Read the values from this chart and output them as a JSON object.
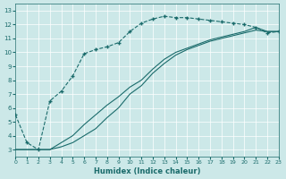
{
  "xlabel": "Humidex (Indice chaleur)",
  "background_color": "#cce8e8",
  "line_color": "#1a6b6b",
  "xlim": [
    0,
    23
  ],
  "ylim": [
    2.5,
    13.5
  ],
  "xticks": [
    0,
    1,
    2,
    3,
    4,
    5,
    6,
    7,
    8,
    9,
    10,
    11,
    12,
    13,
    14,
    15,
    16,
    17,
    18,
    19,
    20,
    21,
    22,
    23
  ],
  "yticks": [
    3,
    4,
    5,
    6,
    7,
    8,
    9,
    10,
    11,
    12,
    13
  ],
  "series": [
    {
      "x": [
        0,
        1,
        2,
        3,
        4,
        5,
        6,
        7,
        8,
        9,
        10,
        11,
        12,
        13,
        14,
        15,
        16,
        17,
        18,
        19,
        20,
        21,
        22,
        23
      ],
      "y": [
        5.5,
        3.5,
        3.0,
        6.5,
        7.2,
        8.3,
        9.9,
        10.2,
        10.4,
        10.7,
        11.5,
        12.1,
        12.4,
        12.6,
        12.5,
        12.5,
        12.4,
        12.3,
        12.2,
        12.1,
        12.0,
        11.8,
        11.4,
        11.5
      ],
      "linestyle": "--",
      "marker": "+"
    },
    {
      "x": [
        0,
        1,
        2,
        3,
        4,
        5,
        6,
        7,
        8,
        9,
        10,
        11,
        12,
        13,
        14,
        15,
        16,
        17,
        18,
        19,
        20,
        21,
        22,
        23
      ],
      "y": [
        3.0,
        3.0,
        3.0,
        3.0,
        3.5,
        4.0,
        4.8,
        5.5,
        6.2,
        6.8,
        7.5,
        8.0,
        8.8,
        9.5,
        10.0,
        10.3,
        10.6,
        10.9,
        11.1,
        11.3,
        11.5,
        11.8,
        11.5,
        11.5
      ],
      "linestyle": "-",
      "marker": null
    },
    {
      "x": [
        0,
        1,
        2,
        3,
        4,
        5,
        6,
        7,
        8,
        9,
        10,
        11,
        12,
        13,
        14,
        15,
        16,
        17,
        18,
        19,
        20,
        21,
        22,
        23
      ],
      "y": [
        3.0,
        3.0,
        3.0,
        3.0,
        3.2,
        3.5,
        4.0,
        4.5,
        5.3,
        6.0,
        7.0,
        7.6,
        8.5,
        9.2,
        9.8,
        10.2,
        10.5,
        10.8,
        11.0,
        11.2,
        11.4,
        11.6,
        11.5,
        11.5
      ],
      "linestyle": "-",
      "marker": null
    }
  ]
}
